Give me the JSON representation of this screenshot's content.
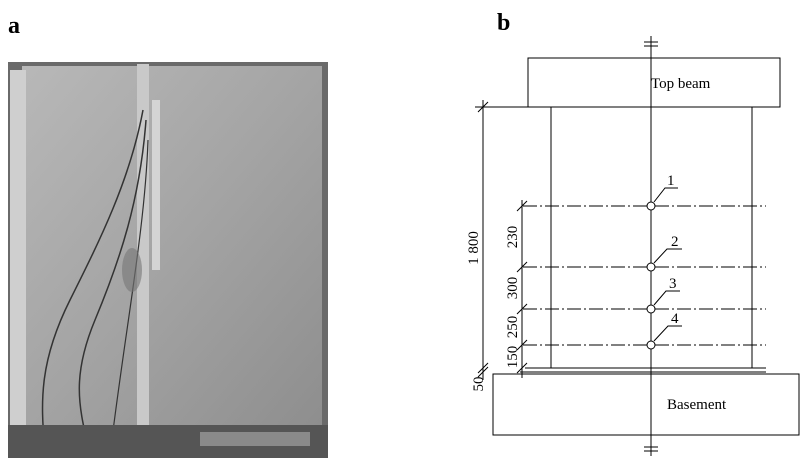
{
  "panels": [
    {
      "label": "a"
    },
    {
      "label": "b",
      "top_beam": "Top beam",
      "basement": "Basement",
      "dimensions": [
        "1 800",
        "230",
        "300",
        "250",
        "150",
        "50"
      ],
      "points": [
        "1",
        "2",
        "3",
        "4"
      ]
    }
  ]
}
